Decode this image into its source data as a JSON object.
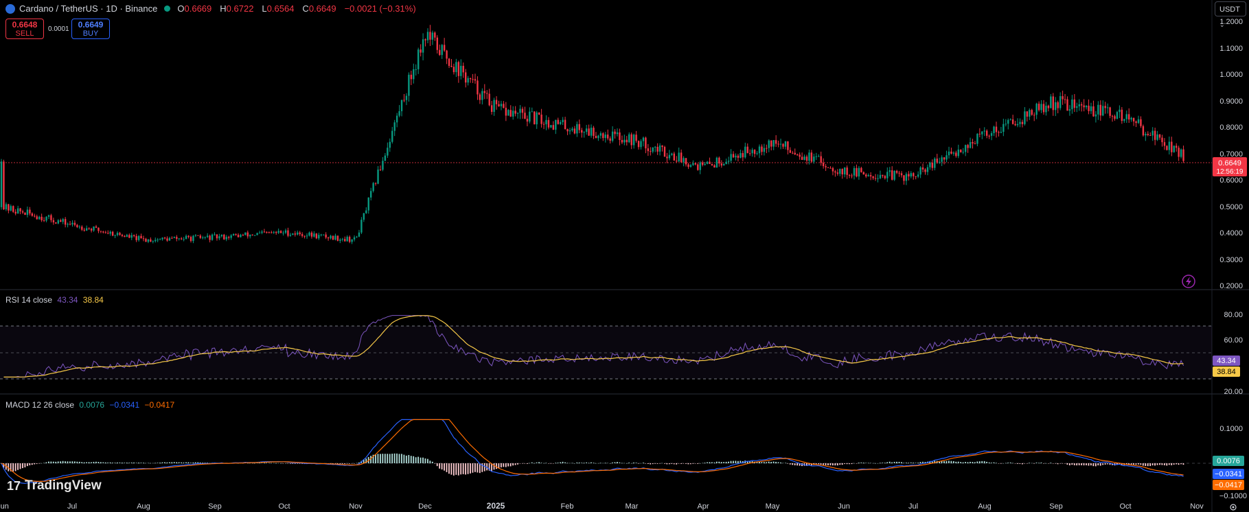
{
  "header": {
    "symbol": "Cardano / TetherUS · 1D · Binance",
    "open_label": "O",
    "open": "0.6669",
    "high_label": "H",
    "high": "0.6722",
    "low_label": "L",
    "low": "0.6564",
    "close_label": "C",
    "close": "0.6649",
    "change": "−0.0021 (−0.31%)",
    "bid": "0.6648",
    "bid_label": "SELL",
    "spread": "0.0001",
    "ask": "0.6649",
    "ask_label": "BUY",
    "currency": "USDT"
  },
  "colors": {
    "up": "#089981",
    "down": "#f23645",
    "rsi": "#7e57c2",
    "rsi_ma": "#f7c948",
    "macd": "#2962ff",
    "signal": "#ff6d00"
  },
  "price_axis": {
    "ticks": [
      "1.2000",
      "1.1000",
      "1.0000",
      "0.9000",
      "0.8000",
      "0.7000",
      "0.6000",
      "0.5000",
      "0.4000",
      "0.3000",
      "0.2000"
    ],
    "last_price": "0.6649",
    "countdown": "12:56:19"
  },
  "rsi": {
    "label": "RSI 14 close",
    "value": "43.34",
    "ma_value": "38.84",
    "ticks": [
      "80.00",
      "60.00",
      "20.00"
    ]
  },
  "macd": {
    "label": "MACD 12 26 close",
    "hist": "0.0076",
    "macd": "−0.0341",
    "signal": "−0.0417",
    "ticks": [
      "0.1000",
      "−0.1000"
    ]
  },
  "time_axis": [
    "Jun",
    "Jul",
    "Aug",
    "Sep",
    "Oct",
    "Nov",
    "Dec",
    "2025",
    "Feb",
    "Mar",
    "Apr",
    "May",
    "Jun",
    "Jul",
    "Aug",
    "Sep",
    "Oct",
    "Nov"
  ],
  "brand": "TradingView",
  "chart_data": {
    "type": "candlestick",
    "title": "Cardano / TetherUS · 1D · Binance",
    "y_range": [
      0.2,
      1.2
    ],
    "key_points": [
      {
        "t": "Jun",
        "price": 0.46
      },
      {
        "t": "Jul",
        "price": 0.39
      },
      {
        "t": "Aug",
        "price": 0.33
      },
      {
        "t": "Sep",
        "price": 0.34
      },
      {
        "t": "Oct",
        "price": 0.36
      },
      {
        "t": "Nov",
        "price": 0.33
      },
      {
        "t": "Dec",
        "price": 1.15
      },
      {
        "t": "2025",
        "price": 0.85
      },
      {
        "t": "Feb",
        "price": 0.78
      },
      {
        "t": "Mar",
        "price": 0.73
      },
      {
        "t": "Apr",
        "price": 0.62
      },
      {
        "t": "May",
        "price": 0.72
      },
      {
        "t": "Jun",
        "price": 0.6
      },
      {
        "t": "Jul",
        "price": 0.58
      },
      {
        "t": "Aug",
        "price": 0.75
      },
      {
        "t": "Sep",
        "price": 0.88
      },
      {
        "t": "Oct",
        "price": 0.82
      },
      {
        "t": "Nov",
        "price": 0.6649
      }
    ],
    "rsi_range": [
      20,
      80
    ],
    "macd_range": [
      -0.1,
      0.1
    ]
  }
}
